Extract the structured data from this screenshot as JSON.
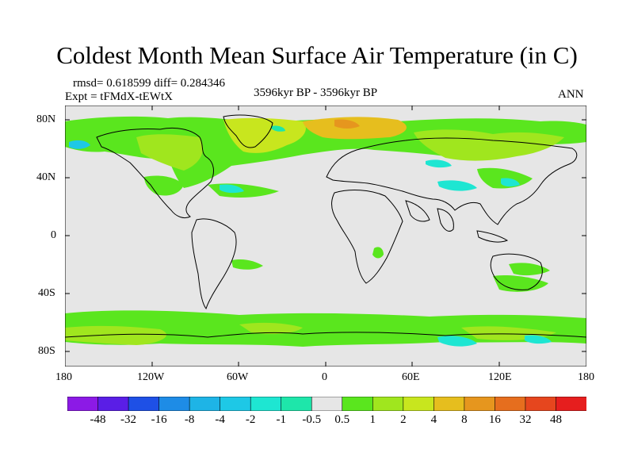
{
  "title": "Coldest Month Mean Surface Air Temperature (in C)",
  "stats": "rmsd= 0.618599 diff= 0.284346",
  "experiment": "Expt = tFMdX-tEWtX",
  "period": "3596kyr BP - 3596kyr BP",
  "season": "ANN",
  "lat_ticks": [
    "80N",
    "40N",
    "0",
    "40S",
    "80S"
  ],
  "lon_ticks": [
    "180",
    "120W",
    "60W",
    "0",
    "60E",
    "120E",
    "180"
  ],
  "colorbar": {
    "labels": [
      "-48",
      "-32",
      "-16",
      "-8",
      "-4",
      "-2",
      "-1",
      "-0.5",
      "0.5",
      "1",
      "2",
      "4",
      "8",
      "16",
      "32",
      "48"
    ],
    "colors": [
      "#8c1ae6",
      "#5a1ee6",
      "#1e50e6",
      "#1e8ce6",
      "#1eb4e6",
      "#1ec8e6",
      "#1ee6d2",
      "#1ee6aa",
      "#e6e6e6",
      "#5ae61e",
      "#a0e61e",
      "#c8e61e",
      "#e6be1e",
      "#e6961e",
      "#e66e1e",
      "#e6461e",
      "#e61e1e"
    ]
  }
}
